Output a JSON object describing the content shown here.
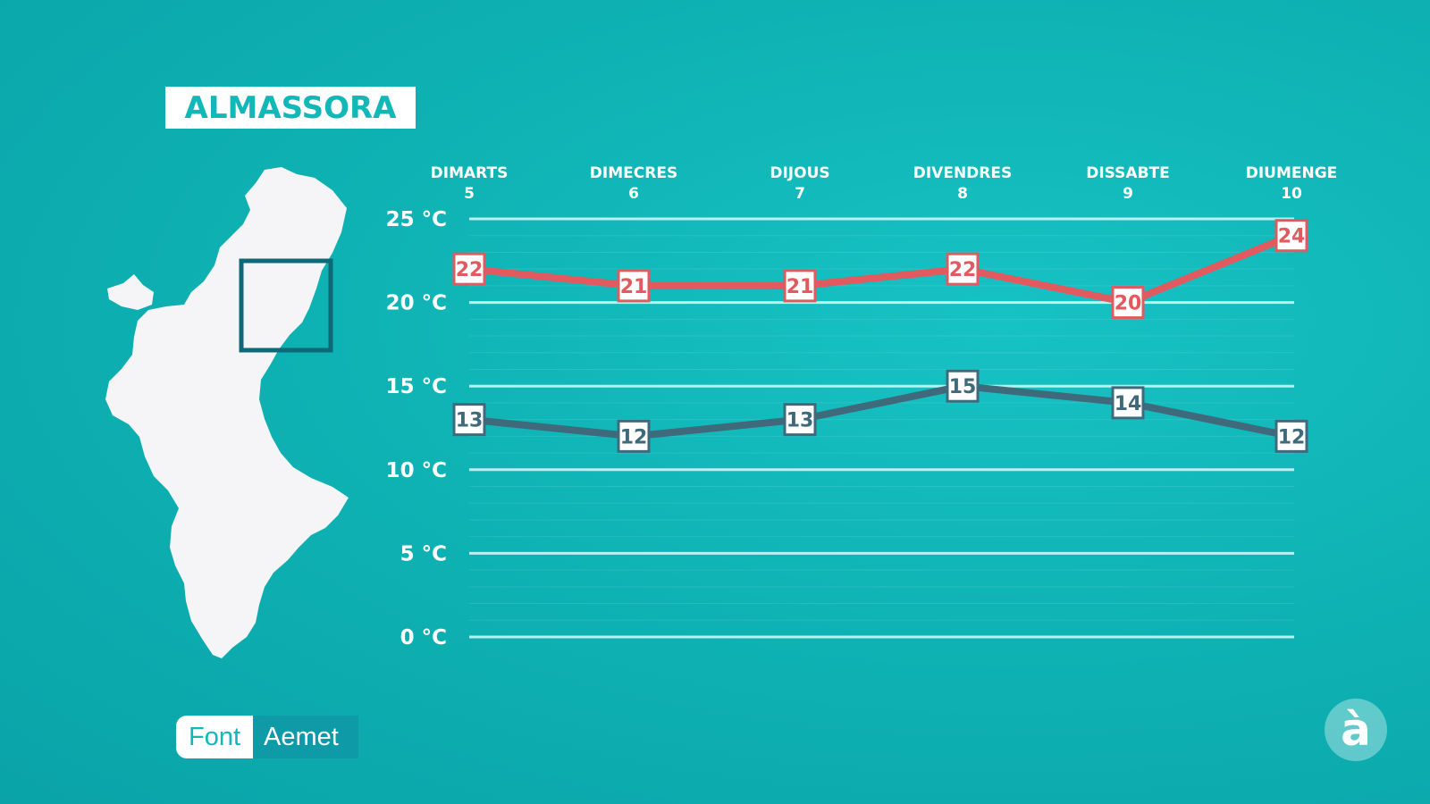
{
  "title": "ALMASSORA",
  "source": {
    "label": "Font",
    "value": "Aemet"
  },
  "logo": {
    "glyph": "à",
    "icon": "a-grave-logo-icon"
  },
  "map": {
    "icon": "valencian-community-map-icon"
  },
  "colors": {
    "max": "#e05a5f",
    "min": "#3f6a7b",
    "bg": "#0fb3b4",
    "accent": "#12b7b7"
  },
  "chart_data": {
    "type": "line",
    "categories": [
      {
        "day": "DIMARTS",
        "date": "5"
      },
      {
        "day": "DIMECRES",
        "date": "6"
      },
      {
        "day": "DIJOUS",
        "date": "7"
      },
      {
        "day": "DIVENDRES",
        "date": "8"
      },
      {
        "day": "DISSABTE",
        "date": "9"
      },
      {
        "day": "DIUMENGE",
        "date": "10"
      }
    ],
    "series": [
      {
        "key": "max",
        "values": [
          22,
          21,
          21,
          22,
          20,
          24
        ]
      },
      {
        "key": "min",
        "values": [
          13,
          12,
          13,
          15,
          14,
          12
        ]
      }
    ],
    "yticks": [
      {
        "value": 0,
        "label": "0 °C"
      },
      {
        "value": 5,
        "label": "5 °C"
      },
      {
        "value": 10,
        "label": "10 °C"
      },
      {
        "value": 15,
        "label": "15 °C"
      },
      {
        "value": 20,
        "label": "20 °C"
      },
      {
        "value": 25,
        "label": "25 °C"
      }
    ],
    "ylim": [
      0,
      25
    ],
    "grid": true,
    "legend": "none"
  }
}
